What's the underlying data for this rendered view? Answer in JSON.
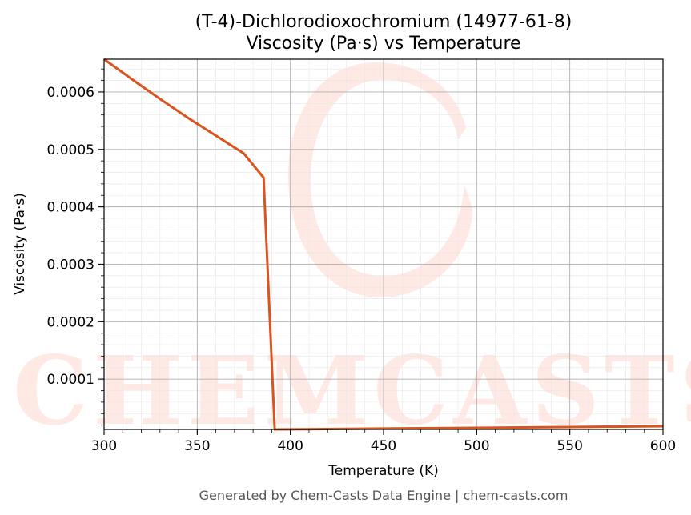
{
  "chart_data": {
    "type": "line",
    "title": "(T-4)-Dichlorodioxochromium (14977-61-8)",
    "subtitle": "Viscosity (Pa·s) vs Temperature",
    "xlabel": "Temperature (K)",
    "ylabel": "Viscosity (Pa·s)",
    "xlim": [
      300,
      600
    ],
    "ylim": [
      1.25e-05,
      0.000657
    ],
    "x_ticks": [
      300,
      350,
      400,
      450,
      500,
      550,
      600
    ],
    "x_tick_labels": [
      "300",
      "350",
      "400",
      "450",
      "500",
      "550",
      "600"
    ],
    "y_ticks": [
      0.0001,
      0.0002,
      0.0003,
      0.0004,
      0.0005,
      0.0006
    ],
    "y_tick_labels": [
      "0.0001",
      "0.0002",
      "0.0003",
      "0.0004",
      "0.0005",
      "0.0006"
    ],
    "grid": true,
    "minor_grid": true,
    "series": [
      {
        "color": "#d9541e",
        "x": [
          300,
          315,
          330,
          345,
          360,
          375,
          385.6,
          391.6,
          400,
          450,
          500,
          550,
          600
        ],
        "y": [
          0.000657,
          0.000622,
          0.000588,
          0.000555,
          0.000524,
          0.000493,
          0.000451,
          1.25e-05,
          1.27e-05,
          1.4e-05,
          1.53e-05,
          1.67e-05,
          1.8e-05
        ]
      }
    ]
  },
  "watermark": {
    "text": "CHEMCASTS",
    "color": "#ff9a85"
  },
  "footer": {
    "text": "Generated by Chem-Casts Data Engine | chem-casts.com"
  }
}
